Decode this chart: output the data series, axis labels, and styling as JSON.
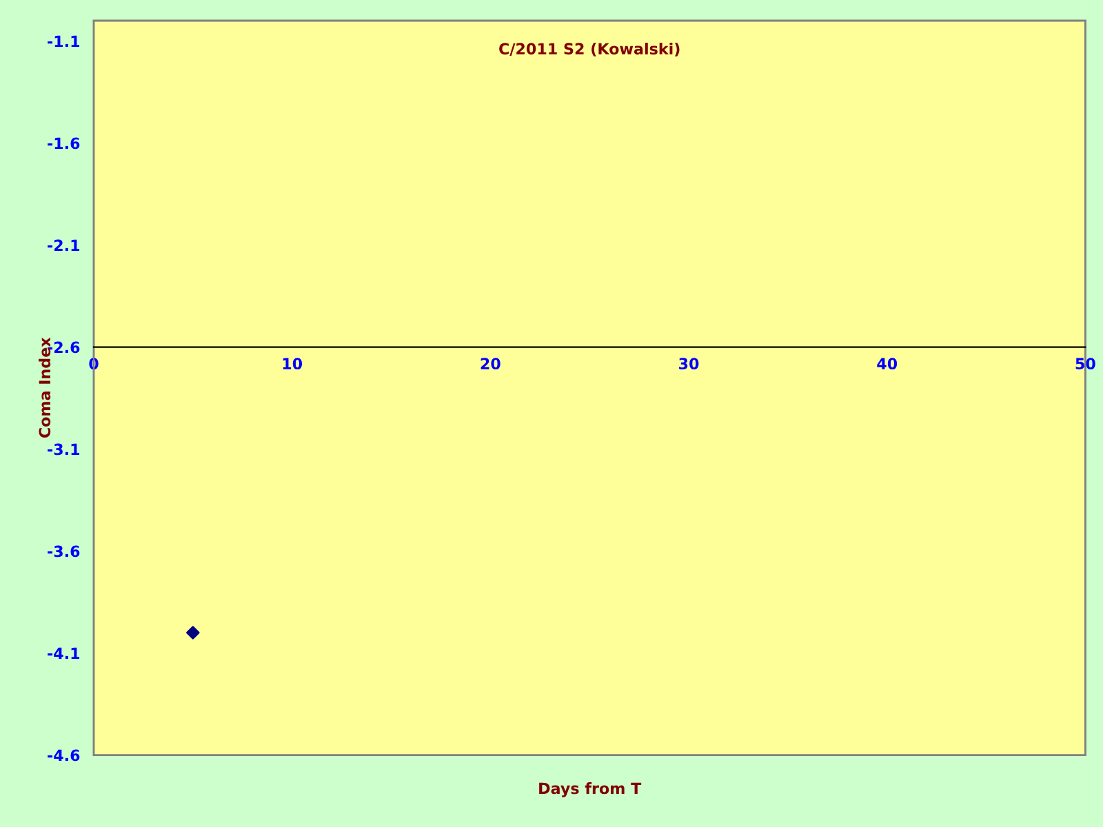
{
  "chart_data": {
    "type": "scatter",
    "title": "C/2011 S2 (Kowalski)",
    "xlabel": "Days from T",
    "ylabel": "Coma Index",
    "x": [
      5
    ],
    "series": [
      {
        "color": "#000080",
        "values": [
          -4.0
        ]
      }
    ],
    "xlim": [
      0,
      50
    ],
    "xticks": [
      0,
      10,
      20,
      30,
      40,
      50
    ],
    "ylim": [
      -4.6,
      -1.0
    ],
    "yticks": [
      -1.1,
      -1.6,
      -2.1,
      -2.6,
      -3.1,
      -3.6,
      -4.1,
      -4.6
    ],
    "marker": "diamond",
    "grid": false,
    "legend": false
  }
}
